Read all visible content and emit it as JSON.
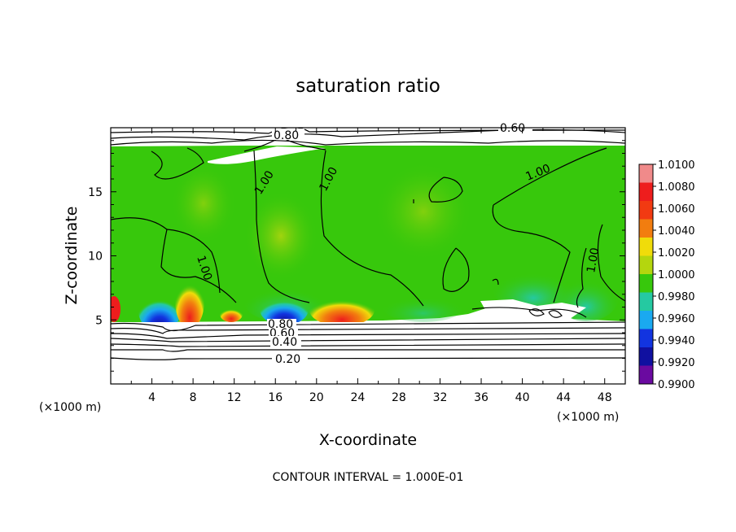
{
  "chart_data": {
    "type": "heatmap",
    "title": "saturation ratio",
    "xlabel": "X-coordinate",
    "ylabel": "Z-coordinate",
    "x_unit": "(×1000 m)",
    "y_unit": "(×1000 m)",
    "xlim": [
      0,
      50
    ],
    "ylim": [
      0,
      20
    ],
    "x_ticks": [
      "4",
      "8",
      "12",
      "16",
      "20",
      "24",
      "28",
      "32",
      "36",
      "40",
      "44",
      "48"
    ],
    "y_ticks": [
      "5",
      "10",
      "15"
    ],
    "colorbar": {
      "levels": [
        "1.0100",
        "1.0080",
        "1.0060",
        "1.0040",
        "1.0020",
        "1.0000",
        "0.9980",
        "0.9960",
        "0.9940",
        "0.9920",
        "0.9900"
      ],
      "colors": [
        "#f08a8a",
        "#ee1d1d",
        "#f23a12",
        "#f27d0f",
        "#f0dc0a",
        "#b4d60e",
        "#37c80c",
        "#25c9a1",
        "#1aa9f0",
        "#1234e0",
        "#1010a0",
        "#6a0aa0"
      ]
    },
    "contour_labels": [
      "0.60",
      "0.80",
      "1.00",
      "1.00",
      "1.00",
      "1.00",
      "1.00",
      "0.80",
      "0.60",
      "0.40",
      "0.20"
    ],
    "footer": "CONTOUR INTERVAL = 1.000E-01",
    "regions": [
      {
        "x": [
          0,
          50
        ],
        "z": [
          5,
          18.5
        ],
        "value": 1.0005
      },
      {
        "x": [
          3,
          5.5
        ],
        "z": [
          4.8,
          6.5
        ],
        "value": 0.9925
      },
      {
        "x": [
          6.5,
          8.5
        ],
        "z": [
          4.8,
          7.8
        ],
        "value": 1.0075
      },
      {
        "x": [
          15,
          18
        ],
        "z": [
          4.8,
          6.2
        ],
        "value": 0.9935
      },
      {
        "x": [
          20,
          24.5
        ],
        "z": [
          4.8,
          6.2
        ],
        "value": 1.0065
      },
      {
        "x": [
          0,
          50
        ],
        "z": [
          0,
          5
        ],
        "value": 0.4
      },
      {
        "x": [
          0,
          50
        ],
        "z": [
          18.5,
          20
        ],
        "value": 0.7
      }
    ]
  }
}
